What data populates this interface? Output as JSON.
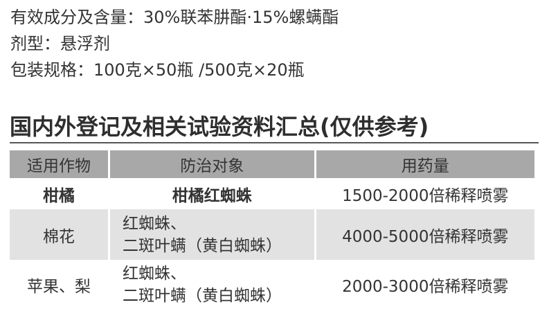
{
  "info": {
    "ingredients": "有效成分及含量：30%联苯肼酯·15%螺螨酯",
    "formulation": "剂型：悬浮剂",
    "packaging": "包装规格：100克×50瓶 /500克×20瓶"
  },
  "section_title": "国内外登记及相关试验资料汇总(仅供参考)",
  "table": {
    "headers": [
      "适用作物",
      "防治对象",
      "用药量"
    ],
    "rows": [
      {
        "crop": "柑橘",
        "target": [
          "柑橘红蜘蛛"
        ],
        "dosage": "1500-2000倍稀释喷雾"
      },
      {
        "crop": "棉花",
        "target": [
          "红蜘蛛、",
          "二斑叶螨（黄白蜘蛛）"
        ],
        "dosage": "4000-5000倍稀释喷雾"
      },
      {
        "crop": "苹果、梨",
        "target": [
          "红蜘蛛、",
          "二斑叶螨（黄白蜘蛛）"
        ],
        "dosage": "2000-3000倍稀释喷雾"
      }
    ]
  },
  "colors": {
    "header_bg": "#a8a8a8",
    "alt_row_bg": "#e2e2e2",
    "text": "#333333"
  }
}
